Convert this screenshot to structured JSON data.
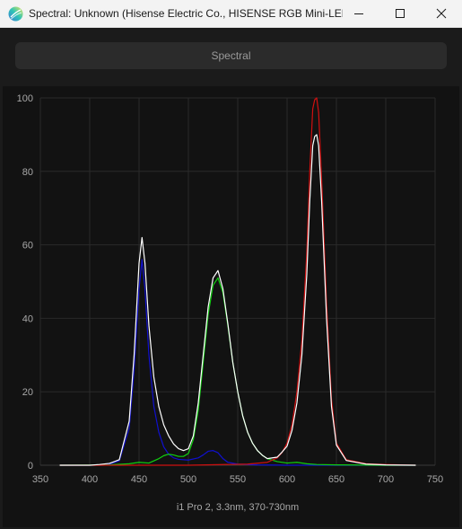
{
  "window": {
    "title": "Spectral: Unknown (Hisense Electric Co., HISENSE RGB Mini-LED..."
  },
  "icons": {
    "app": "spectral-app-icon",
    "minimize": "minimize-icon",
    "maximize": "maximize-icon",
    "close": "close-icon"
  },
  "tab": {
    "label": "Spectral"
  },
  "chart_data": {
    "type": "line",
    "title": "",
    "xlabel": "i1 Pro 2, 3.3nm, 370-730nm",
    "ylabel": "",
    "xlim": [
      350,
      750
    ],
    "ylim": [
      0,
      100
    ],
    "xticks": [
      350,
      400,
      450,
      500,
      550,
      600,
      650,
      700,
      750
    ],
    "yticks": [
      0,
      20,
      40,
      60,
      80,
      100
    ],
    "grid": true,
    "background": "#121212",
    "series": [
      {
        "color": "#1010d0",
        "x": [
          370,
          400,
          410,
          420,
          430,
          440,
          445,
          450,
          453,
          456,
          460,
          465,
          470,
          475,
          480,
          485,
          490,
          500,
          510,
          515,
          520,
          525,
          530,
          535,
          540,
          550,
          570,
          600,
          650,
          700,
          730
        ],
        "y": [
          0,
          0,
          0.1,
          0.3,
          1.2,
          10,
          26,
          48,
          56,
          48,
          30,
          16,
          9,
          5,
          3,
          2,
          1.6,
          1.4,
          2,
          2.8,
          3.8,
          4,
          3.4,
          1.8,
          0.8,
          0.3,
          0.1,
          0,
          0,
          0,
          0
        ]
      },
      {
        "color": "#10d010",
        "x": [
          370,
          420,
          440,
          450,
          460,
          470,
          475,
          480,
          485,
          490,
          495,
          500,
          505,
          510,
          515,
          520,
          525,
          530,
          535,
          540,
          545,
          550,
          555,
          560,
          565,
          570,
          575,
          580,
          590,
          600,
          610,
          620,
          630,
          650,
          700,
          730
        ],
        "y": [
          0,
          0.1,
          0.4,
          0.8,
          0.6,
          1.8,
          2.6,
          3.0,
          2.8,
          2.4,
          2.4,
          3.2,
          7,
          15,
          28,
          41,
          49,
          51,
          47,
          38,
          28,
          20,
          13.5,
          9,
          6,
          4,
          2.7,
          1.8,
          1,
          0.6,
          0.8,
          0.4,
          0.2,
          0.1,
          0,
          0
        ]
      },
      {
        "color": "#d01010",
        "x": [
          370,
          500,
          560,
          580,
          590,
          595,
          600,
          605,
          610,
          615,
          620,
          623,
          626,
          628,
          630,
          632,
          635,
          640,
          645,
          650,
          660,
          680,
          700,
          730
        ],
        "y": [
          0,
          0,
          0.3,
          0.8,
          2,
          3.5,
          6,
          11,
          20,
          34,
          58,
          80,
          97,
          99.5,
          100,
          96,
          78,
          44,
          18,
          6,
          1.5,
          0.4,
          0.2,
          0
        ]
      },
      {
        "color": "#ffffff",
        "x": [
          370,
          400,
          410,
          420,
          430,
          440,
          445,
          450,
          453,
          456,
          460,
          465,
          470,
          475,
          480,
          485,
          490,
          495,
          500,
          505,
          510,
          515,
          520,
          525,
          530,
          535,
          540,
          545,
          550,
          555,
          560,
          565,
          570,
          575,
          580,
          590,
          595,
          600,
          605,
          610,
          615,
          620,
          623,
          626,
          628,
          630,
          632,
          635,
          640,
          645,
          650,
          660,
          680,
          700,
          730
        ],
        "y": [
          0,
          0,
          0.2,
          0.5,
          1.5,
          12,
          30,
          55,
          62,
          55,
          38,
          24,
          16,
          11,
          8,
          5.8,
          4.5,
          4,
          4.5,
          8,
          17,
          30,
          43,
          51,
          53,
          48,
          38.5,
          28,
          20,
          13.5,
          9,
          6,
          4,
          2.7,
          1.8,
          2.2,
          3.6,
          5.2,
          9.5,
          17,
          30,
          52,
          72,
          87,
          89.5,
          90,
          87,
          72,
          40,
          16,
          5.5,
          1.3,
          0.3,
          0.1,
          0
        ]
      }
    ]
  }
}
